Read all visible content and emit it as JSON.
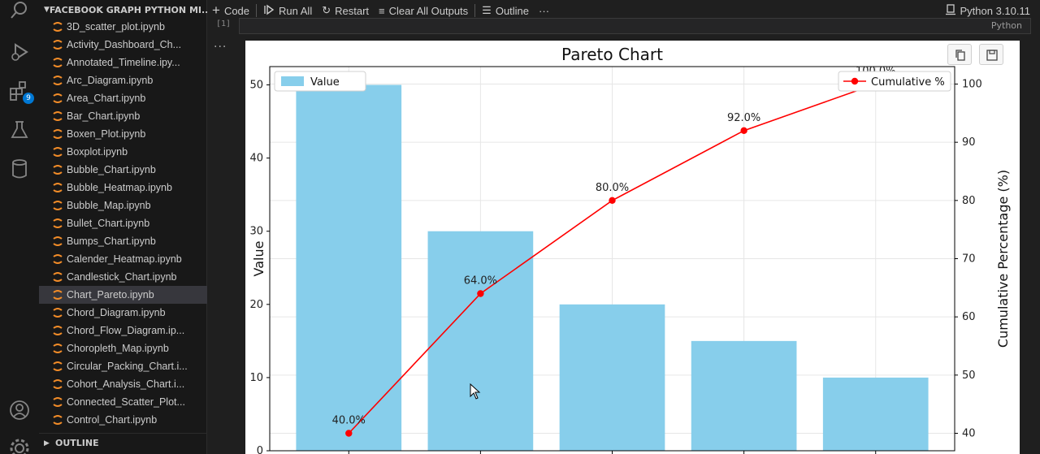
{
  "sidebar": {
    "header": "FACEBOOK GRAPH PYTHON MI...",
    "outline_label": "OUTLINE",
    "files": [
      {
        "label": "3D_scatter_plot.ipynb"
      },
      {
        "label": "Activity_Dashboard_Ch..."
      },
      {
        "label": "Annotated_Timeline.ipy..."
      },
      {
        "label": "Arc_Diagram.ipynb"
      },
      {
        "label": "Area_Chart.ipynb"
      },
      {
        "label": "Bar_Chart.ipynb"
      },
      {
        "label": "Boxen_Plot.ipynb"
      },
      {
        "label": "Boxplot.ipynb"
      },
      {
        "label": "Bubble_Chart.ipynb"
      },
      {
        "label": "Bubble_Heatmap.ipynb"
      },
      {
        "label": "Bubble_Map.ipynb"
      },
      {
        "label": "Bullet_Chart.ipynb"
      },
      {
        "label": "Bumps_Chart.ipynb"
      },
      {
        "label": "Calender_Heatmap.ipynb"
      },
      {
        "label": "Candlestick_Chart.ipynb"
      },
      {
        "label": "Chart_Pareto.ipynb",
        "active": true
      },
      {
        "label": "Chord_Diagram.ipynb"
      },
      {
        "label": "Chord_Flow_Diagram.ip..."
      },
      {
        "label": "Choropleth_Map.ipynb"
      },
      {
        "label": "Circular_Packing_Chart.i..."
      },
      {
        "label": "Cohort_Analysis_Chart.i..."
      },
      {
        "label": "Connected_Scatter_Plot..."
      },
      {
        "label": "Control_Chart.ipynb"
      }
    ]
  },
  "activity_bar": {
    "extensions_badge": "9",
    "icons": [
      "search-icon",
      "run-debug-icon",
      "extensions-icon",
      "flask-icon",
      "database-icon",
      "account-icon",
      "settings-gear-icon"
    ]
  },
  "toolbar": {
    "code_label": "Code",
    "run_all_label": "Run All",
    "restart_label": "Restart",
    "clear_outputs_label": "Clear All Outputs",
    "outline_label": "Outline",
    "more_label": "···",
    "kernel_label": "Python 3.10.11"
  },
  "cell": {
    "execution_count": "[1]",
    "language": "Python",
    "more_actions": "···"
  },
  "colors": {
    "bar": "#87ceeb",
    "line": "#ff0000",
    "file_icon": "#f28c28"
  },
  "chart_data": {
    "type": "bar",
    "title": "Pareto Chart",
    "ylabel": "Value",
    "y2label": "Cumulative Percentage (%)",
    "ylim": [
      0,
      52.5
    ],
    "y2lim": [
      37,
      103
    ],
    "yticks": [
      "0",
      "10",
      "20",
      "30",
      "40",
      "50"
    ],
    "y2ticks": [
      "40",
      "50",
      "60",
      "70",
      "80",
      "90",
      "100"
    ],
    "grid": true,
    "series": [
      {
        "name": "Value",
        "kind": "bar",
        "values": [
          50,
          30,
          20,
          15,
          10
        ]
      },
      {
        "name": "Cumulative %",
        "kind": "line",
        "axis": "right",
        "values": [
          40.0,
          64.0,
          80.0,
          92.0,
          100.0
        ],
        "labels": [
          "40.0%",
          "64.0%",
          "80.0%",
          "92.0%",
          "100.0%"
        ]
      }
    ],
    "legend_left": "top-left",
    "legend_right": "top-right"
  }
}
